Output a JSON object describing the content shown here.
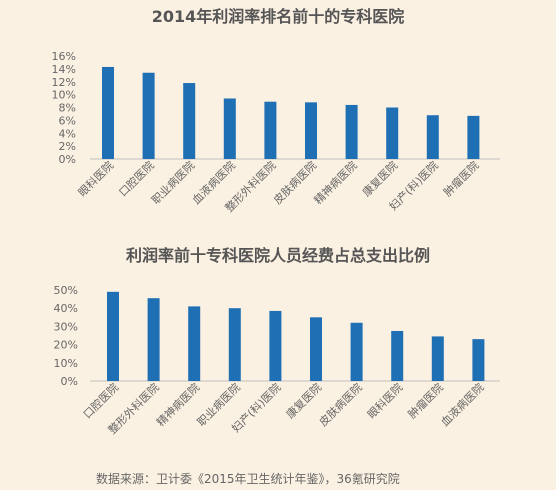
{
  "chart_data": [
    {
      "type": "bar",
      "title": "2014年利润率排名前十的专科医院",
      "categories": [
        "眼科医院",
        "口腔医院",
        "职业病医院",
        "血液病医院",
        "整形外科医院",
        "皮肤病医院",
        "精神病医院",
        "康复医院",
        "妇产(科)医院",
        "肿瘤医院"
      ],
      "values": [
        14.3,
        13.4,
        11.8,
        9.4,
        8.9,
        8.8,
        8.4,
        8.0,
        6.8,
        6.7
      ],
      "yticks": [
        "0%",
        "2%",
        "4%",
        "6%",
        "8%",
        "10%",
        "12%",
        "14%",
        "16%"
      ],
      "ylim": [
        0,
        16
      ],
      "color": "#1f6fb5"
    },
    {
      "type": "bar",
      "title": "利润率前十专科医院人员经费占总支出比例",
      "categories": [
        "口腔医院",
        "整形外科医院",
        "精神病医院",
        "职业病医院",
        "妇产(科)医院",
        "康复医院",
        "皮肤病医院",
        "眼科医院",
        "肿瘤医院",
        "血液病医院"
      ],
      "values": [
        49,
        45.5,
        41,
        40,
        38.5,
        35,
        32,
        27.5,
        24.5,
        23
      ],
      "yticks": [
        "0%",
        "10%",
        "20%",
        "30%",
        "40%",
        "50%"
      ],
      "ylim": [
        0,
        50
      ],
      "color": "#1f6fb5"
    }
  ],
  "source": "数据来源：卫计委《2015年卫生统计年鉴》，36氪研究院"
}
